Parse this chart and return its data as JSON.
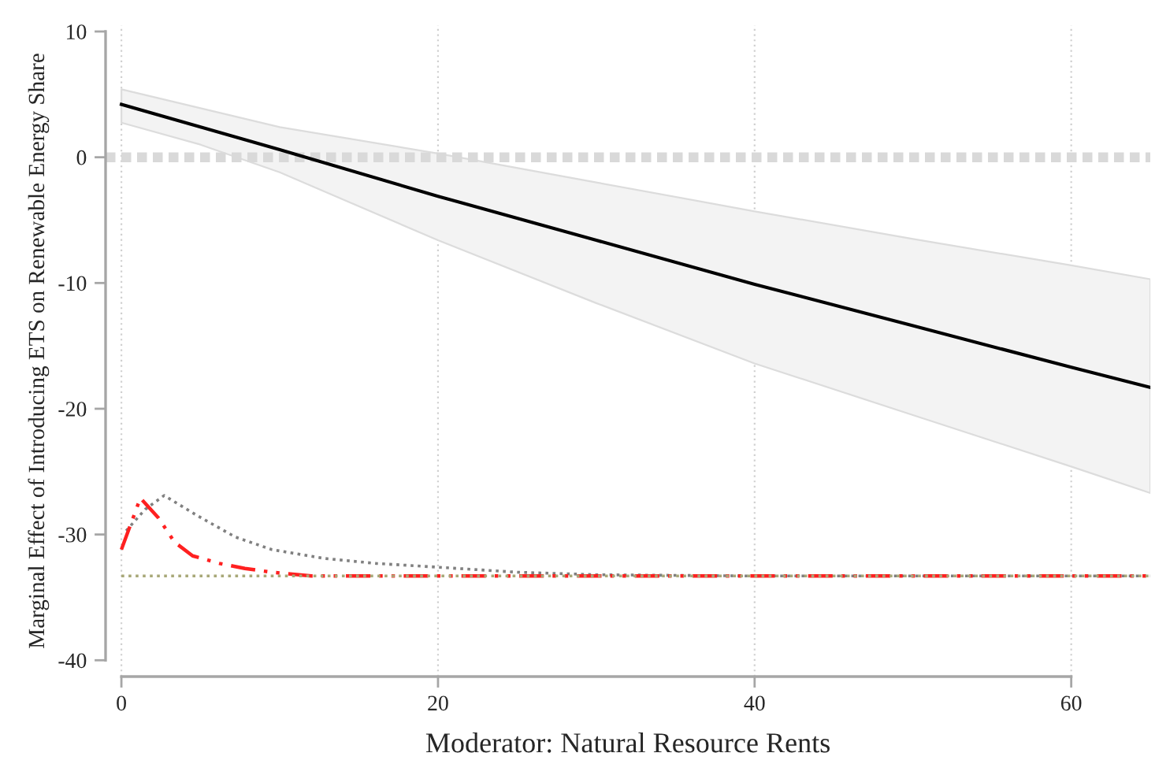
{
  "chart_data": {
    "type": "line",
    "xlabel": "Moderator: Natural Resource Rents",
    "ylabel": "Marginal Effect of Introducing ETS on Renewable Energy Share",
    "xlim": [
      -1,
      65
    ],
    "ylim": [
      -41.3,
      10.5
    ],
    "xticks": [
      0,
      20,
      40,
      60
    ],
    "yticks": [
      -40,
      -30,
      -20,
      -10,
      0,
      10
    ],
    "grid": "x",
    "ref_lines": [
      {
        "axis": "y",
        "value": 0,
        "color": "#d9d9d9",
        "line_style": "dotted"
      }
    ],
    "series": [
      {
        "type": "line",
        "color": "#000000",
        "line_style": "solid",
        "x": [
          0,
          5,
          10,
          20,
          30,
          40,
          50,
          60,
          65
        ],
        "values": [
          4.2,
          2.4,
          0.6,
          -3.1,
          -6.6,
          -10.1,
          -13.4,
          -16.7,
          -18.3
        ],
        "lower": [
          2.75,
          1.0,
          -1.2,
          -6.6,
          -11.6,
          -16.4,
          -20.5,
          -24.6,
          -26.7
        ],
        "upper": [
          5.4,
          3.9,
          2.4,
          0.3,
          -2.0,
          -4.3,
          -6.5,
          -8.6,
          -9.7
        ]
      },
      {
        "type": "line",
        "color": "#808080",
        "line_style": "dotted",
        "x": [
          0.3,
          1.5,
          2.7,
          4.8,
          7.2,
          9.5,
          12.8,
          16.1,
          20,
          25,
          30,
          40,
          65
        ],
        "values": [
          -29.7,
          -28.0,
          -26.9,
          -28.5,
          -30.2,
          -31.2,
          -31.9,
          -32.3,
          -32.6,
          -33.0,
          -33.2,
          -33.3,
          -33.3
        ]
      },
      {
        "type": "line",
        "color": "#ff2020",
        "line_style": "dashdot",
        "x": [
          0,
          1.2,
          2.35,
          3.35,
          4.5,
          6.2,
          7.8,
          9.5,
          12,
          65
        ],
        "values": [
          -31.2,
          -27.1,
          -28.7,
          -30.6,
          -31.7,
          -32.3,
          -32.7,
          -33.0,
          -33.3,
          -33.3
        ]
      },
      {
        "type": "line",
        "color": "#a8a878",
        "line_style": "dotted",
        "x": [
          0,
          65
        ],
        "values": [
          -33.3,
          -33.3
        ]
      }
    ]
  }
}
